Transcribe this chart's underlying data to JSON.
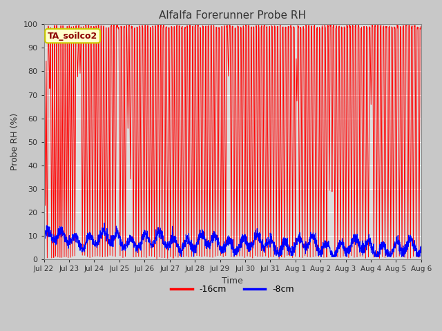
{
  "title": "Alfalfa Forerunner Probe RH",
  "ylabel": "Probe RH (%)",
  "xlabel": "Time",
  "ylim": [
    0,
    100
  ],
  "fig_facecolor": "#c8c8c8",
  "plot_facecolor": "#dcdcdc",
  "grid_color": "white",
  "legend_label_16cm": "-16cm",
  "legend_label_8cm": "-8cm",
  "line_color_16cm": "red",
  "line_color_8cm": "blue",
  "annotation_text": "TA_soilco2",
  "annotation_bg": "#ffffcc",
  "annotation_border": "#cccc00",
  "tick_labels": [
    "Jul 22",
    "Jul 23",
    "Jul 24",
    "Jul 25",
    "Jul 26",
    "Jul 27",
    "Jul 28",
    "Jul 29",
    "Jul 30",
    "Jul 31",
    "Aug 1",
    "Aug 2",
    "Aug 3",
    "Aug 4",
    "Aug 5",
    "Aug 6"
  ],
  "spike_positions": [
    0.05,
    0.12,
    0.22,
    0.3,
    0.38,
    0.46,
    0.55,
    0.63,
    0.71,
    0.8,
    0.88,
    0.96,
    1.05,
    1.13,
    1.22,
    1.33,
    1.43,
    1.52,
    1.62,
    1.72,
    1.82,
    1.92,
    2.03,
    2.12,
    2.22,
    2.32,
    2.42,
    2.52,
    2.62,
    2.73,
    2.83,
    3.02,
    3.13,
    3.23,
    3.33,
    3.43,
    3.55,
    3.65,
    3.76,
    3.86,
    3.97,
    4.07,
    4.18,
    4.28,
    4.38,
    4.48,
    4.59,
    4.69,
    4.8,
    4.91,
    5.02,
    5.13,
    5.22,
    5.33,
    5.43,
    5.54,
    5.65,
    5.75,
    5.86,
    5.96,
    6.07,
    6.17,
    6.27,
    6.38,
    6.48,
    6.59,
    6.7,
    6.8,
    6.91,
    7.02,
    7.12,
    7.22,
    7.33,
    7.44,
    7.55,
    7.66,
    7.77,
    7.88,
    7.98,
    8.08,
    8.19,
    8.29,
    8.39,
    8.49,
    8.59,
    8.7,
    8.81,
    8.91,
    9.01,
    9.12,
    9.23,
    9.34,
    9.44,
    9.55,
    9.66,
    9.77,
    9.88,
    9.99,
    10.05,
    10.15,
    10.26,
    10.37,
    10.47,
    10.58,
    10.69,
    10.8,
    10.91,
    11.01,
    11.12,
    11.23,
    11.34,
    11.45,
    11.56,
    11.67,
    11.78,
    11.89,
    12.0,
    12.11,
    12.22,
    12.33,
    12.44,
    12.56,
    12.67,
    12.78,
    12.89,
    13.0,
    13.11,
    13.22,
    13.33,
    13.44,
    13.55,
    13.67,
    13.78,
    13.89,
    14.0,
    14.12,
    14.23,
    14.34,
    14.46,
    14.57,
    14.68,
    14.79,
    14.91
  ],
  "spike_depths": [
    23,
    1,
    73,
    1,
    1,
    1,
    1,
    1,
    1,
    1,
    1,
    1,
    1,
    1,
    1,
    78,
    79,
    1,
    1,
    1,
    1,
    1,
    1,
    1,
    1,
    1,
    1,
    1,
    1,
    1,
    1,
    1,
    1,
    1,
    56,
    34,
    1,
    1,
    1,
    1,
    1,
    1,
    1,
    1,
    1,
    1,
    1,
    1,
    1,
    1,
    1,
    1,
    1,
    1,
    1,
    1,
    1,
    1,
    1,
    1,
    1,
    1,
    1,
    1,
    1,
    1,
    1,
    1,
    1,
    1,
    1,
    1,
    78,
    1,
    1,
    1,
    1,
    1,
    1,
    1,
    1,
    1,
    1,
    1,
    1,
    1,
    1,
    1,
    1,
    1,
    1,
    1,
    1,
    1,
    1,
    1,
    1,
    1,
    67,
    1,
    1,
    1,
    1,
    1,
    1,
    1,
    1,
    1,
    1,
    1,
    29,
    28,
    1,
    1,
    1,
    1,
    1,
    1,
    1,
    1,
    1,
    1,
    1,
    1,
    1,
    66,
    1,
    1,
    1,
    1,
    1,
    1,
    1,
    1,
    1,
    1,
    1,
    1,
    1,
    1,
    1,
    1,
    1
  ]
}
